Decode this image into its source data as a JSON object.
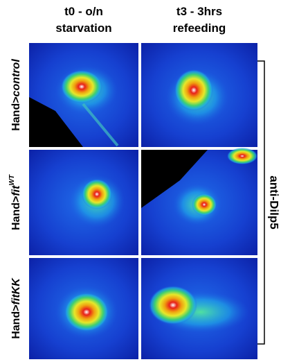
{
  "columns": [
    {
      "line1": "t0 - o/n",
      "line2": "starvation"
    },
    {
      "line1": "t3 - 3hrs",
      "line2": "refeeding"
    }
  ],
  "rows": [
    {
      "prefix": "Hand>",
      "italic": "control"
    },
    {
      "prefix": "Hand>",
      "italic": "fit",
      "superscript": "WT"
    },
    {
      "prefix": "Hand>",
      "italic": "fitKK"
    }
  ],
  "side_label": "anti-Dilp5"
}
